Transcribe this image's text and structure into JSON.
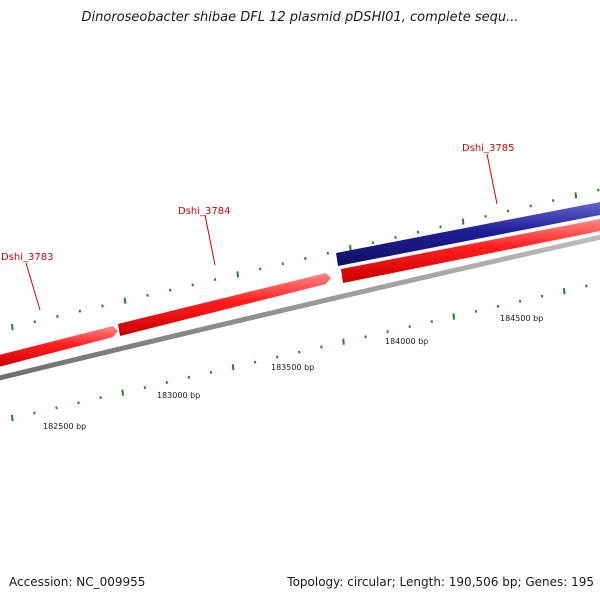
{
  "title": "Dinoroseobacter shibae DFL 12 plasmid pDSHI01, complete sequ...",
  "footer": {
    "accession": "Accession: NC_009955",
    "summary": "Topology: circular; Length: 190,506 bp; Genes: 195"
  },
  "colors": {
    "forward_gene": "#e8141b",
    "reverse_gene": "#1c1a8c",
    "backbone": "#8a8a8a",
    "tick_marks": "#1a8a1a",
    "gene_label": "#d40000"
  },
  "genes": [
    {
      "name": "Dshi_3783",
      "strand": "forward"
    },
    {
      "name": "Dshi_3784",
      "strand": "forward"
    },
    {
      "name": "Dshi_3785",
      "strand": "reverse"
    },
    {
      "name": "",
      "strand": "forward"
    }
  ],
  "scale_labels": [
    "182500 bp",
    "183000 bp",
    "183500 bp",
    "184000 bp",
    "184500 bp"
  ]
}
